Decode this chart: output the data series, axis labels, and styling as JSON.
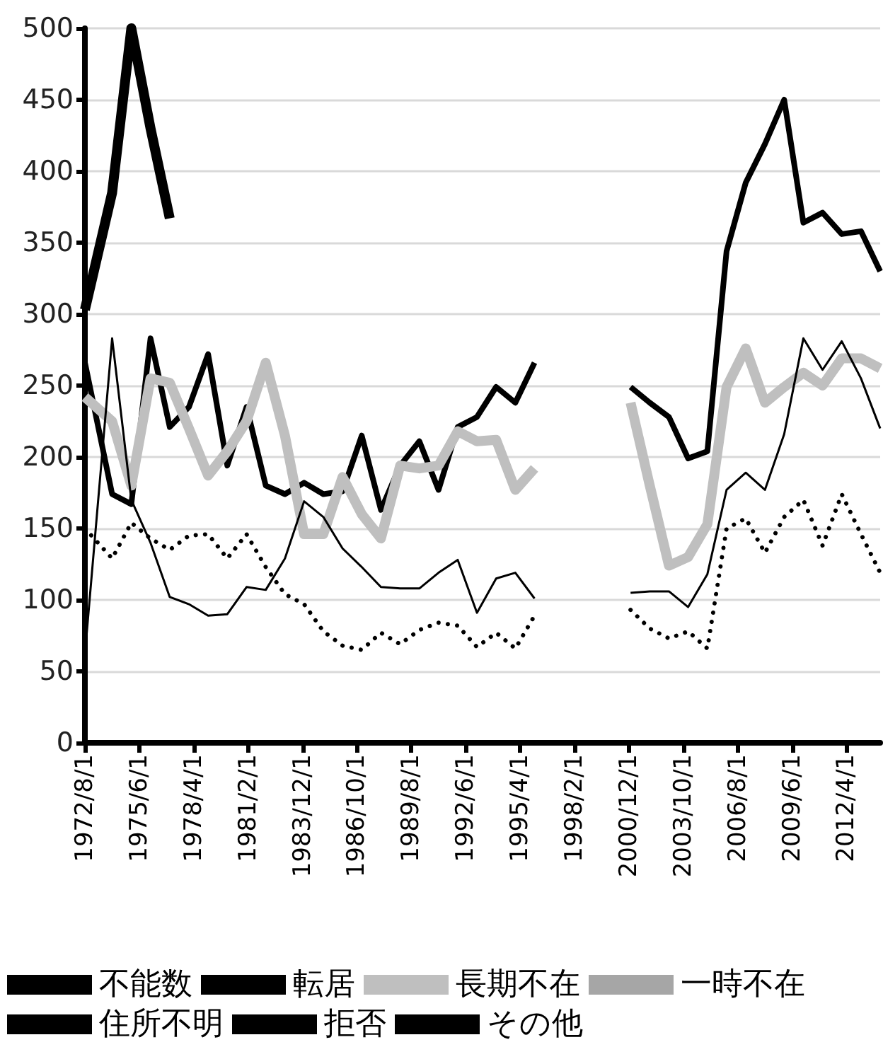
{
  "chart_data": {
    "type": "line",
    "x": [
      "1972-08",
      "1974-01",
      "1975-01",
      "1976-01",
      "1977-01",
      "1978-01",
      "1979-01",
      "1980-01",
      "1981-01",
      "1982-01",
      "1983-01",
      "1984-01",
      "1985-01",
      "1986-01",
      "1987-01",
      "1988-01",
      "1989-01",
      "1990-01",
      "1991-01",
      "1992-01",
      "1993-01",
      "1994-01",
      "1995-01",
      "1996-01",
      "1997-01",
      "1998-01",
      "1999-01",
      "2000-01",
      "2001-01",
      "2002-01",
      "2003-01",
      "2004-01",
      "2005-01",
      "2006-01",
      "2007-01",
      "2008-01",
      "2009-01",
      "2010-01",
      "2011-01",
      "2012-01",
      "2013-01",
      "2014-01"
    ],
    "xlim": [
      "1972-08",
      "2014-01"
    ],
    "xticks": [
      {
        "value": "1972-08",
        "label": "1972/8/1"
      },
      {
        "value": "1975-06",
        "label": "1975/6/1"
      },
      {
        "value": "1978-04",
        "label": "1978/4/1"
      },
      {
        "value": "1981-02",
        "label": "1981/2/1"
      },
      {
        "value": "1983-12",
        "label": "1983/12/1"
      },
      {
        "value": "1986-10",
        "label": "1986/10/1"
      },
      {
        "value": "1989-08",
        "label": "1989/8/1"
      },
      {
        "value": "1992-06",
        "label": "1992/6/1"
      },
      {
        "value": "1995-04",
        "label": "1995/4/1"
      },
      {
        "value": "1998-02",
        "label": "1998/2/1"
      },
      {
        "value": "2000-12",
        "label": "2000/12/1"
      },
      {
        "value": "2003-10",
        "label": "2003/10/1"
      },
      {
        "value": "2006-08",
        "label": "2006/8/1"
      },
      {
        "value": "2009-06",
        "label": "2009/6/1"
      },
      {
        "value": "2012-04",
        "label": "2012/4/1"
      }
    ],
    "ylim": [
      0,
      500
    ],
    "yticks": [
      0,
      50,
      100,
      150,
      200,
      250,
      300,
      350,
      400,
      450,
      500
    ],
    "grid": "y",
    "legend": "bottom",
    "marker": "none",
    "line_style": "solid",
    "series": [
      {
        "name": "不能数",
        "color": "#000000",
        "values": [
          303,
          385,
          500,
          430,
          367,
          null,
          null,
          null,
          null,
          null,
          null,
          null,
          null,
          null,
          null,
          null,
          null,
          null,
          null,
          null,
          null,
          null,
          null,
          null,
          null,
          null,
          null,
          null,
          null,
          null,
          null,
          null,
          null,
          null,
          null,
          null,
          null,
          null,
          null,
          null,
          null,
          null
        ]
      },
      {
        "name": "転居",
        "color": "#000000",
        "values": [
          266,
          174,
          167,
          283,
          221,
          235,
          272,
          194,
          235,
          180,
          174,
          182,
          174,
          176,
          215,
          163,
          194,
          211,
          177,
          221,
          228,
          249,
          238,
          266,
          null,
          null,
          null,
          null,
          249,
          238,
          228,
          199,
          204,
          344,
          392,
          419,
          450,
          364,
          371,
          356,
          358,
          330
        ]
      },
      {
        "name": "長期不在",
        "color": "#bfbfbf",
        "values": [
          242,
          225,
          180,
          255,
          252,
          220,
          187,
          204,
          225,
          266,
          215,
          146,
          146,
          186,
          160,
          143,
          194,
          192,
          194,
          218,
          211,
          212,
          177,
          192,
          null,
          null,
          null,
          null,
          238,
          180,
          124,
          130,
          153,
          249,
          276,
          238,
          249,
          259,
          250,
          269,
          269,
          262
        ]
      },
      {
        "name": "一時不在",
        "color": "#a6a6a6",
        "values": [
          null,
          null,
          null,
          null,
          null,
          null,
          null,
          null,
          null,
          null,
          null,
          null,
          null,
          null,
          null,
          null,
          null,
          null,
          null,
          null,
          null,
          null,
          null,
          null,
          null,
          null,
          null,
          null,
          null,
          null,
          null,
          null,
          null,
          null,
          null,
          null,
          null,
          null,
          null,
          null,
          null,
          null
        ]
      },
      {
        "name": "住所不明",
        "color": "#000000",
        "line_style": "dotted",
        "values": [
          150,
          129,
          154,
          143,
          135,
          145,
          146,
          129,
          146,
          123,
          104,
          97,
          78,
          68,
          65,
          77,
          69,
          79,
          84,
          82,
          67,
          77,
          66,
          89,
          null,
          null,
          null,
          null,
          93,
          80,
          73,
          78,
          66,
          150,
          157,
          133,
          158,
          170,
          138,
          174,
          146,
          119
        ]
      },
      {
        "name": "拒否",
        "color": "#000000",
        "values": [
          null,
          null,
          null,
          null,
          null,
          null,
          null,
          null,
          null,
          null,
          null,
          null,
          null,
          null,
          null,
          null,
          null,
          null,
          null,
          null,
          null,
          null,
          null,
          null,
          null,
          null,
          null,
          null,
          null,
          null,
          null,
          null,
          null,
          null,
          null,
          null,
          null,
          null,
          null,
          null,
          null,
          null
        ]
      },
      {
        "name": "その他",
        "color": "#000000",
        "values": [
          62,
          283,
          170,
          140,
          102,
          97,
          89,
          90,
          109,
          107,
          129,
          169,
          158,
          136,
          123,
          109,
          108,
          108,
          119,
          128,
          91,
          115,
          119,
          101,
          null,
          null,
          null,
          null,
          105,
          106,
          106,
          95,
          118,
          177,
          189,
          177,
          216,
          283,
          261,
          281,
          255,
          220
        ]
      }
    ]
  }
}
